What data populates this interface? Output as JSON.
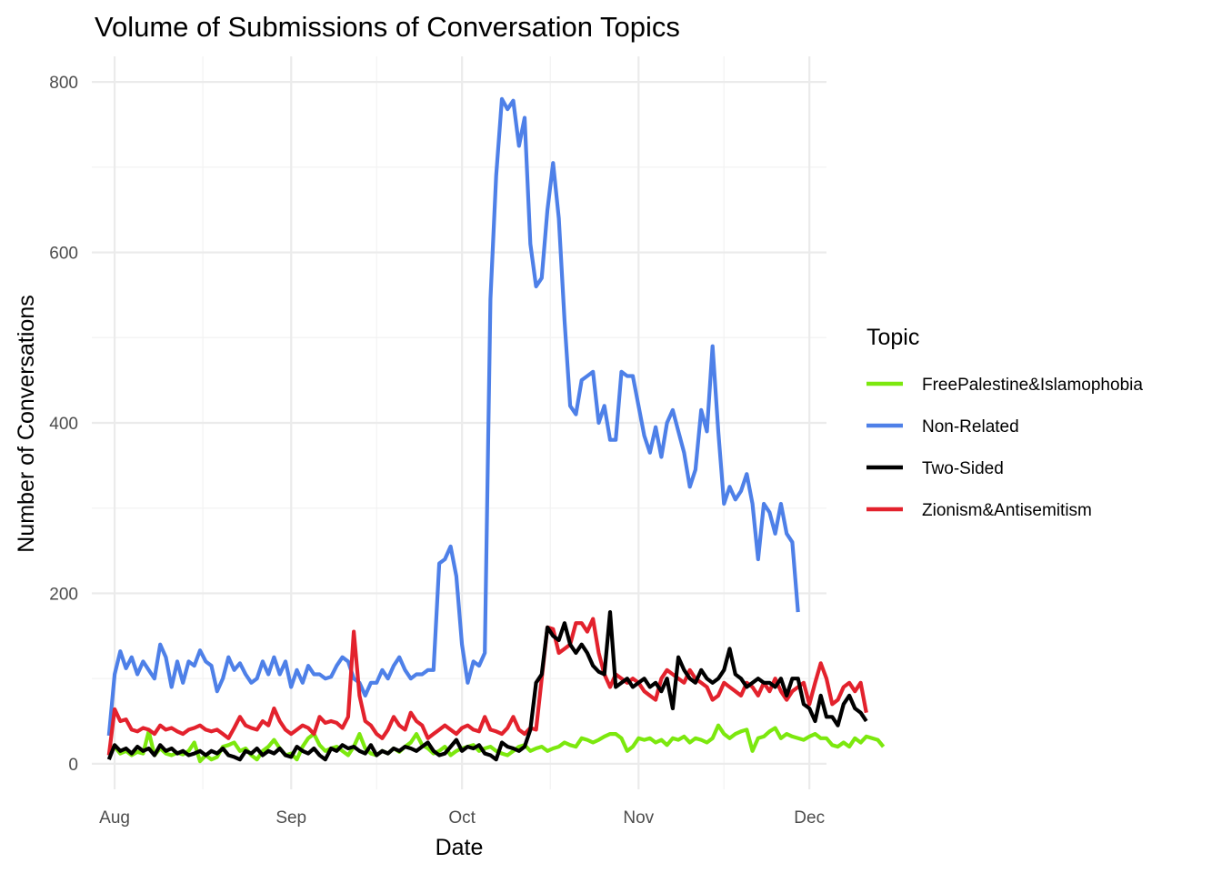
{
  "chart_data": {
    "type": "line",
    "title": "Volume of Submissions of Conversation Topics",
    "xlabel": "Date",
    "ylabel": "Number of Conversations",
    "x_ticks": [
      "Aug",
      "Sep",
      "Oct",
      "Nov",
      "Dec"
    ],
    "y_ticks": [
      0,
      200,
      400,
      600,
      800
    ],
    "ylim": [
      -30,
      830
    ],
    "xlim": [
      "2023-07-28",
      "2023-12-04"
    ],
    "grid": true,
    "legend_title": "Topic",
    "legend_position": "right",
    "start_date": "2023-07-31",
    "series": [
      {
        "name": "FreePalestine&Islamophobia",
        "color": "#7CE80E",
        "values": [
          18,
          20,
          12,
          15,
          10,
          14,
          12,
          38,
          10,
          18,
          12,
          10,
          13,
          11,
          15,
          25,
          3,
          10,
          5,
          8,
          20,
          22,
          25,
          15,
          18,
          10,
          5,
          15,
          20,
          28,
          18,
          10,
          12,
          5,
          20,
          30,
          35,
          22,
          15,
          18,
          20,
          15,
          10,
          20,
          35,
          18,
          12,
          10,
          15,
          12,
          18,
          14,
          20,
          25,
          35,
          22,
          18,
          12,
          15,
          20,
          10,
          15,
          18,
          20,
          22,
          15,
          18,
          20,
          15,
          12,
          10,
          15,
          20,
          22,
          15,
          18,
          20,
          15,
          18,
          20,
          25,
          22,
          20,
          30,
          28,
          25,
          28,
          32,
          35,
          35,
          30,
          15,
          20,
          30,
          28,
          30,
          25,
          28,
          22,
          30,
          28,
          32,
          25,
          30,
          28,
          25,
          30,
          45,
          35,
          30,
          35,
          38,
          40,
          15,
          30,
          32,
          38,
          42,
          30,
          35,
          32,
          30,
          28,
          32,
          35,
          30,
          30,
          22,
          20,
          25,
          20,
          30,
          25,
          32,
          30,
          28,
          20
        ]
      },
      {
        "name": "Non-Related",
        "color": "#4E80E8",
        "values": [
          33,
          105,
          132,
          112,
          125,
          105,
          120,
          110,
          100,
          140,
          125,
          90,
          120,
          95,
          120,
          115,
          133,
          120,
          115,
          85,
          100,
          125,
          110,
          118,
          105,
          95,
          100,
          120,
          105,
          125,
          105,
          120,
          90,
          110,
          95,
          115,
          105,
          105,
          100,
          102,
          115,
          125,
          120,
          100,
          95,
          80,
          95,
          95,
          110,
          100,
          115,
          125,
          110,
          100,
          105,
          105,
          110,
          110,
          235,
          240,
          255,
          220,
          140,
          95,
          120,
          115,
          130,
          545,
          690,
          780,
          768,
          778,
          725,
          758,
          610,
          560,
          570,
          650,
          705,
          640,
          520,
          420,
          410,
          450,
          455,
          460,
          400,
          420,
          380,
          380,
          460,
          455,
          455,
          420,
          385,
          365,
          395,
          360,
          400,
          415,
          390,
          365,
          325,
          345,
          415,
          390,
          490,
          390,
          305,
          325,
          310,
          320,
          340,
          305,
          240,
          305,
          295,
          270,
          305,
          270,
          260,
          178
        ]
      },
      {
        "name": "Two-Sided",
        "color": "#000000",
        "values": [
          5,
          22,
          15,
          18,
          12,
          20,
          15,
          18,
          10,
          22,
          15,
          18,
          12,
          15,
          10,
          12,
          15,
          10,
          15,
          12,
          18,
          10,
          8,
          5,
          15,
          12,
          18,
          10,
          15,
          12,
          18,
          10,
          8,
          20,
          15,
          12,
          18,
          10,
          5,
          18,
          15,
          22,
          18,
          20,
          15,
          12,
          22,
          10,
          15,
          12,
          18,
          15,
          20,
          18,
          15,
          20,
          25,
          15,
          10,
          12,
          20,
          28,
          15,
          20,
          18,
          22,
          12,
          10,
          5,
          25,
          20,
          18,
          15,
          20,
          40,
          95,
          105,
          160,
          150,
          145,
          165,
          140,
          130,
          140,
          130,
          115,
          108,
          105,
          178,
          90,
          95,
          100,
          90,
          95,
          100,
          90,
          95,
          85,
          100,
          65,
          125,
          110,
          100,
          95,
          110,
          100,
          95,
          100,
          110,
          135,
          105,
          100,
          90,
          95,
          100,
          95,
          95,
          90,
          100,
          80,
          100,
          100,
          70,
          65,
          50,
          80,
          55,
          55,
          45,
          70,
          80,
          65,
          60,
          50
        ]
      },
      {
        "name": "Zionism&Antisemitism",
        "color": "#E3222D",
        "values": [
          10,
          64,
          50,
          52,
          40,
          38,
          42,
          40,
          35,
          45,
          40,
          42,
          38,
          35,
          40,
          42,
          45,
          40,
          38,
          40,
          35,
          30,
          42,
          55,
          45,
          42,
          40,
          50,
          45,
          65,
          50,
          40,
          35,
          40,
          45,
          42,
          35,
          55,
          48,
          50,
          48,
          42,
          55,
          155,
          80,
          50,
          45,
          35,
          30,
          40,
          55,
          45,
          40,
          60,
          50,
          45,
          30,
          35,
          40,
          45,
          40,
          35,
          42,
          45,
          40,
          38,
          55,
          40,
          38,
          35,
          42,
          55,
          40,
          35,
          42,
          40,
          100,
          160,
          158,
          130,
          135,
          140,
          165,
          165,
          155,
          170,
          130,
          105,
          90,
          105,
          100,
          95,
          100,
          95,
          85,
          80,
          75,
          100,
          110,
          105,
          100,
          95,
          110,
          100,
          95,
          90,
          75,
          80,
          95,
          90,
          85,
          80,
          95,
          90,
          80,
          95,
          85,
          100,
          85,
          75,
          85,
          90,
          95,
          70,
          95,
          118,
          100,
          70,
          75,
          90,
          95,
          85,
          95,
          60
        ]
      }
    ]
  }
}
